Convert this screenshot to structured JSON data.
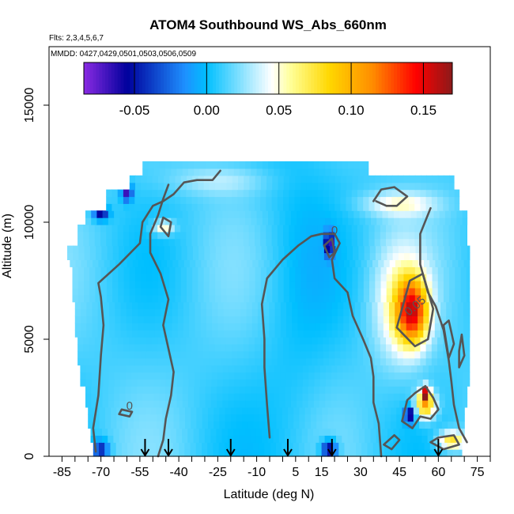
{
  "chart_data": {
    "type": "heatmap",
    "title": "ATOM4 Southbound WS_Abs_660nm",
    "flights_note": "Flts: 2,3,4,5,6,7",
    "dates_note": "MMDD: 0427,0429,0501,0503,0506,0509",
    "xlabel": "Latitude (deg N)",
    "ylabel": "Altitude (m)",
    "xlim": [
      -90,
      80
    ],
    "ylim": [
      0,
      17500
    ],
    "x_ticks": [
      -85,
      -70,
      -55,
      -40,
      -25,
      -10,
      5,
      15,
      30,
      45,
      60,
      75
    ],
    "y_ticks": [
      0,
      5000,
      10000,
      15000
    ],
    "colorbar": {
      "range": [
        -0.085,
        0.17
      ],
      "ticks": [
        -0.05,
        0.0,
        0.05,
        0.1,
        0.15
      ],
      "tick_labels": [
        "-0.05",
        "0.00",
        "0.05",
        "0.10",
        "0.15"
      ],
      "colors": [
        "#8a2be2",
        "#00009c",
        "#1e90ff",
        "#00bfff",
        "#ffffff",
        "#ffff99",
        "#ffd700",
        "#ff8c00",
        "#ff0000",
        "#8b1a1a"
      ]
    },
    "contour_levels": [
      0,
      0.05
    ],
    "contour_labels": [
      {
        "text": "0",
        "lat": 20,
        "alt": 9500
      },
      {
        "text": "0.05",
        "lat": 52,
        "alt": 6300
      },
      {
        "text": "0",
        "lat": -59,
        "alt": 2000
      }
    ],
    "flight_arrows_lat": [
      -53,
      -44,
      -20,
      2,
      19,
      60
    ],
    "coverage": [
      [
        -73,
        0,
        69
      ],
      [
        -74,
        600,
        70
      ],
      [
        -75,
        1200,
        70
      ],
      [
        -76,
        2000,
        71
      ],
      [
        -78,
        3000,
        72
      ],
      [
        -79,
        4000,
        72
      ],
      [
        -80,
        5000,
        72
      ],
      [
        -81,
        6500,
        72
      ],
      [
        -82,
        8000,
        72
      ],
      [
        -83,
        8500,
        72
      ],
      [
        -79,
        9000,
        71
      ],
      [
        -76,
        10000,
        71
      ],
      [
        -68,
        10600,
        68
      ],
      [
        -59,
        11500,
        66
      ],
      [
        -54,
        12000,
        33
      ],
      [
        -47,
        12500,
        15
      ]
    ],
    "features": [
      {
        "lat": 50,
        "alt": 6200,
        "value": 0.12,
        "rlat": 6,
        "ralt": 1400
      },
      {
        "lat": 45,
        "alt": 6500,
        "value": 0.05,
        "rlat": 10,
        "ralt": 2500
      },
      {
        "lat": 55,
        "alt": 2200,
        "value": 0.1,
        "rlat": 4,
        "ralt": 600
      },
      {
        "lat": 55,
        "alt": 2700,
        "value": 0.16,
        "rlat": 1.5,
        "ralt": 300
      },
      {
        "lat": 49,
        "alt": 1800,
        "value": -0.07,
        "rlat": 2,
        "ralt": 350
      },
      {
        "lat": 18,
        "alt": 9100,
        "value": -0.08,
        "rlat": 1.6,
        "ralt": 500
      },
      {
        "lat": 18,
        "alt": 300,
        "value": -0.07,
        "rlat": 3,
        "ralt": 400
      },
      {
        "lat": -46,
        "alt": 9800,
        "value": 0.06,
        "rlat": 4,
        "ralt": 300
      },
      {
        "lat": 45,
        "alt": 10800,
        "value": 0.045,
        "rlat": 14,
        "ralt": 500
      },
      {
        "lat": -60,
        "alt": 11300,
        "value": -0.07,
        "rlat": 2,
        "ralt": 350
      },
      {
        "lat": -70,
        "alt": 10400,
        "value": -0.06,
        "rlat": 3,
        "ralt": 300
      },
      {
        "lat": -70,
        "alt": 300,
        "value": -0.05,
        "rlat": 3,
        "ralt": 400
      },
      {
        "lat": -25,
        "alt": 11800,
        "value": 0.03,
        "rlat": 18,
        "ralt": 600
      },
      {
        "lat": 65,
        "alt": 700,
        "value": 0.08,
        "rlat": 5,
        "ralt": 400
      }
    ]
  }
}
